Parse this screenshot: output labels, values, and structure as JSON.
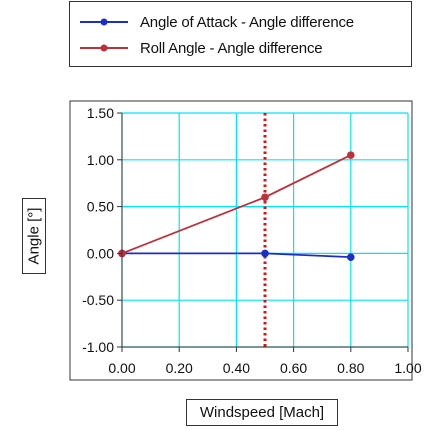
{
  "chart_data": {
    "type": "line",
    "title": "",
    "xlabel": "Windspeed [Mach]",
    "ylabel": "Angle [°]",
    "xlim": [
      0,
      1
    ],
    "ylim": [
      -1,
      1.5
    ],
    "x_ticks": [
      "0.00",
      "0.20",
      "0.40",
      "0.60",
      "0.80",
      "1.00"
    ],
    "y_ticks": [
      "1.50",
      "1.00",
      "0.50",
      "0.00",
      "-0.50",
      "-1.00"
    ],
    "grid": true,
    "grid_color": "#00e5ff",
    "reference_line": {
      "x": 0.5,
      "color": "#e01010",
      "style": "dotted"
    },
    "legend_position": "top",
    "series": [
      {
        "name": "Angle of Attack - Angle difference",
        "color": "#1a2fc8",
        "x": [
          0.0,
          0.5,
          0.8
        ],
        "y": [
          0.0,
          0.0,
          -0.04
        ]
      },
      {
        "name": "Roll Angle - Angle difference",
        "color": "#c0303a",
        "x": [
          0.0,
          0.5,
          0.8
        ],
        "y": [
          0.0,
          0.6,
          1.05
        ]
      }
    ]
  }
}
